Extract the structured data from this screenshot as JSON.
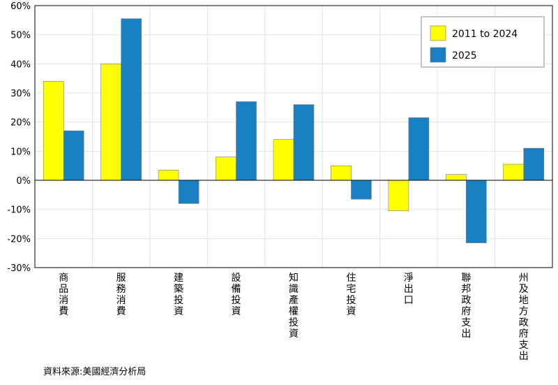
{
  "chart_data": {
    "type": "bar",
    "categories": [
      "商品消費",
      "服務消費",
      "建築投資",
      "設備投資",
      "知識產權投資",
      "住宅投資",
      "淨出口",
      "聯邦政府支出",
      "州及地方政府支出"
    ],
    "series": [
      {
        "name": "2011 to 2024",
        "color": "#ffff00",
        "values": [
          34,
          40,
          3.5,
          8,
          14,
          5,
          -10.5,
          2,
          5.5
        ]
      },
      {
        "name": "2025",
        "color": "#1a80c4",
        "values": [
          17,
          55.5,
          -8,
          27,
          26,
          -6.5,
          21.5,
          -21.5,
          11
        ]
      }
    ],
    "ylim": [
      -30,
      60
    ],
    "yticks": [
      -30,
      -20,
      -10,
      0,
      10,
      20,
      30,
      40,
      50,
      60
    ],
    "ytick_labels": [
      "-30%",
      "-20%",
      "-10%",
      "0%",
      "10%",
      "20%",
      "30%",
      "40%",
      "50%",
      "60%"
    ],
    "grid": true,
    "legend_position": "top-right"
  },
  "source_note": "資料來源:美國經濟分析局"
}
